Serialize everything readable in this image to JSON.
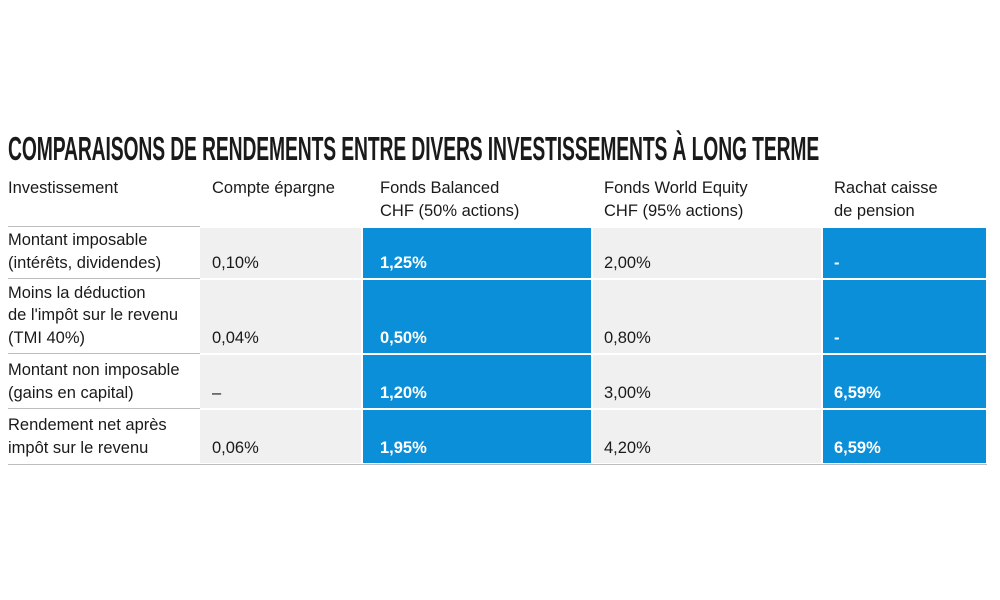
{
  "title": "COMPARAISONS DE RENDEMENTS ENTRE DIVERS INVESTISSEMENTS À LONG TERME",
  "table": {
    "header": [
      [
        "Investissement"
      ],
      [
        "Compte épargne"
      ],
      [
        "Fonds Balanced",
        "CHF (50% actions)"
      ],
      [
        "Fonds World Equity",
        "CHF (95% actions)"
      ],
      [
        "Rachat caisse",
        "de pension"
      ]
    ],
    "rows": [
      {
        "label": [
          "Montant imposable",
          "(intérêts, dividendes)"
        ],
        "cells": [
          "0,10%",
          "1,25%",
          "2,00%",
          "-"
        ]
      },
      {
        "label": [
          "Moins la déduction",
          "de l'impôt sur le revenu",
          "(TMI 40%)"
        ],
        "cells": [
          "0,04%",
          "0,50%",
          "0,80%",
          "-"
        ]
      },
      {
        "label": [
          "Montant non imposable",
          "(gains en capital)"
        ],
        "cells": [
          "–",
          "1,20%",
          "3,00%",
          "6,59%"
        ]
      },
      {
        "label": [
          "Rendement net après",
          "impôt sur le revenu"
        ],
        "cells": [
          "0,06%",
          "1,95%",
          "4,20%",
          "6,59%"
        ]
      }
    ]
  }
}
